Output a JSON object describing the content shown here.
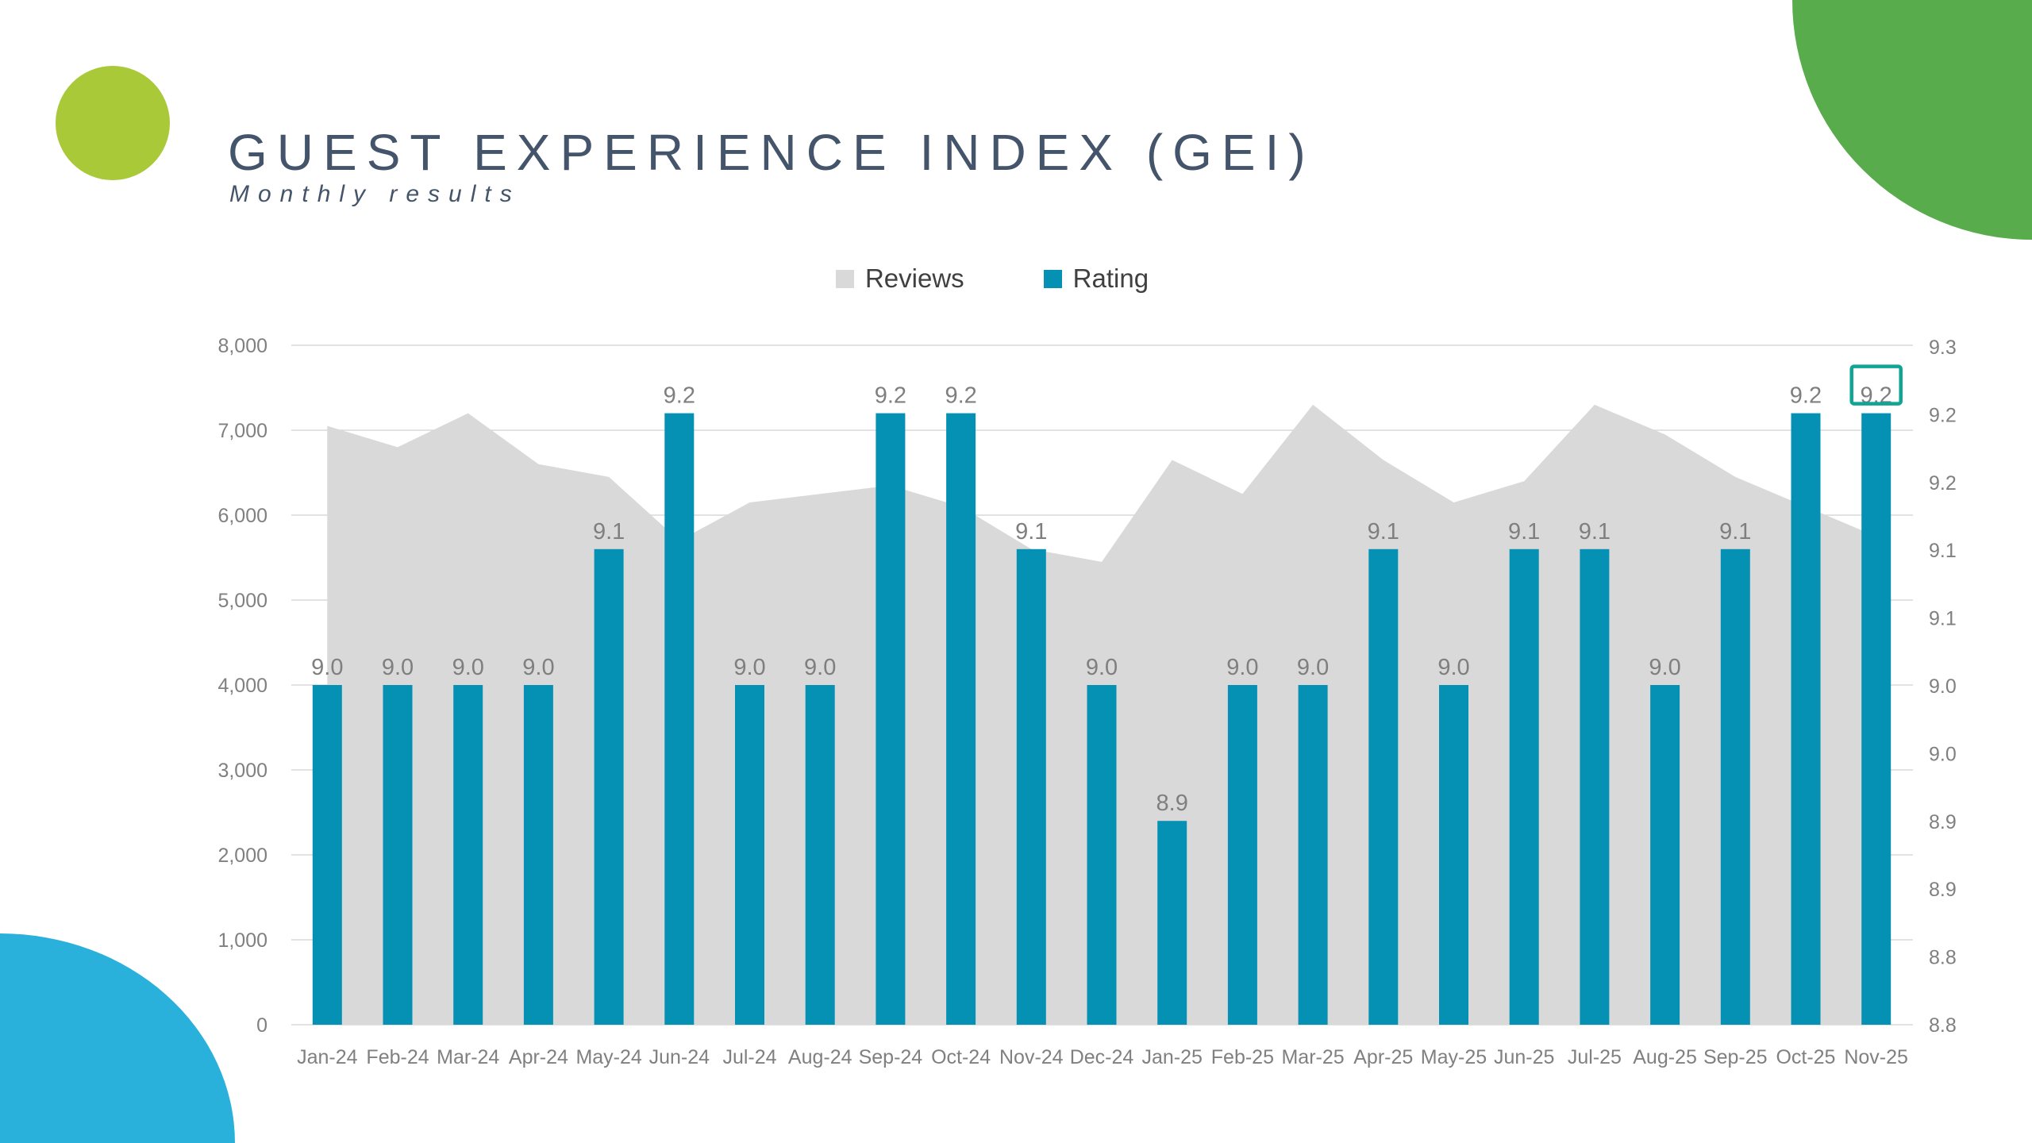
{
  "header": {
    "title": "GUEST EXPERIENCE INDEX (GEI)",
    "subtitle": "Monthly results",
    "title_color": "#44546A"
  },
  "decorations": {
    "top_left_circle_color": "#A9C938",
    "top_right_corner_color": "#58AC4B",
    "bottom_left_corner_color": "#29B1DC"
  },
  "legend": {
    "items": [
      {
        "label": "Reviews",
        "color": "#D9D9D9"
      },
      {
        "label": "Rating",
        "color": "#0591B4"
      }
    ]
  },
  "chart_data": {
    "type": "combo: area (Reviews, left axis) + bar (Rating, right axis)",
    "title": "GUEST EXPERIENCE INDEX (GEI)",
    "subtitle": "Monthly results",
    "legend_position": "top",
    "gridlines": true,
    "categories": [
      "Jan-24",
      "Feb-24",
      "Mar-24",
      "Apr-24",
      "May-24",
      "Jun-24",
      "Jul-24",
      "Aug-24",
      "Sep-24",
      "Oct-24",
      "Nov-24",
      "Dec-24",
      "Jan-25",
      "Feb-25",
      "Mar-25",
      "Apr-25",
      "May-25",
      "Jun-25",
      "Jul-25",
      "Aug-25",
      "Sep-25",
      "Oct-25",
      "Nov-25"
    ],
    "series": [
      {
        "name": "Reviews",
        "type": "area",
        "axis": "left",
        "color": "#D9D9D9",
        "values": [
          7050,
          6800,
          7200,
          6600,
          6450,
          5700,
          6150,
          6250,
          6350,
          6100,
          5600,
          5450,
          6650,
          6250,
          7300,
          6650,
          6150,
          6400,
          7300,
          6950,
          6450,
          6100,
          5750
        ]
      },
      {
        "name": "Rating",
        "type": "bar",
        "axis": "right",
        "color": "#0591B4",
        "values": [
          "9.0",
          "9.0",
          "9.0",
          "9.0",
          "9.1",
          "9.2",
          "9.0",
          "9.0",
          "9.2",
          "9.2",
          "9.1",
          "9.0",
          "8.9",
          "9.0",
          "9.0",
          "9.1",
          "9.0",
          "9.1",
          "9.1",
          "9.0",
          "9.1",
          "9.2",
          "9.2"
        ]
      }
    ],
    "left_axis": {
      "min": 0,
      "max": 8000,
      "tick_step": 1000,
      "tick_labels_top_to_bottom": [
        "8,000",
        "7,000",
        "6,000",
        "5,000",
        "4,000",
        "3,000",
        "2,000",
        "1,000",
        "0"
      ]
    },
    "right_axis": {
      "tick_labels_top_to_bottom": [
        "9.3",
        "9.2",
        "9.2",
        "9.1",
        "9.1",
        "9.0",
        "9.0",
        "8.9",
        "8.9",
        "8.8",
        "8.8"
      ]
    },
    "data_label_color": "#7F7F7F",
    "axis_label_color": "#808080",
    "gridline_color": "#D9D9D9",
    "highlight": {
      "category": "Nov-25",
      "label": "9.2",
      "box_color": "#0FA493"
    }
  }
}
